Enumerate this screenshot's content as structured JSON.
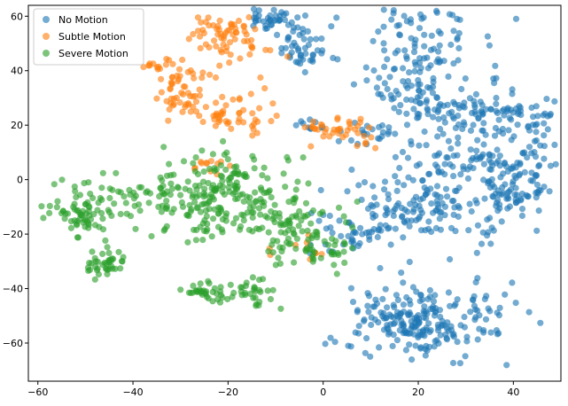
{
  "chart_data": {
    "type": "scatter",
    "title": "",
    "xlabel": "",
    "ylabel": "",
    "xlim": [
      -62,
      50
    ],
    "ylim": [
      -74,
      64
    ],
    "x_ticks": [
      -60,
      -40,
      -20,
      0,
      20,
      40
    ],
    "y_ticks": [
      -60,
      -40,
      -20,
      0,
      20,
      40,
      60
    ],
    "x_tick_labels": [
      "−60",
      "−40",
      "−20",
      "0",
      "20",
      "40"
    ],
    "y_tick_labels": [
      "−60",
      "−40",
      "−20",
      "0",
      "20",
      "40",
      "60"
    ],
    "grid": false,
    "legend_position": "top-left",
    "series": [
      {
        "name": "No Motion",
        "color": "#1f77b4",
        "clusters": [
          {
            "cx": -11,
            "cy": 59,
            "sx": 3,
            "sy": 2.5,
            "n": 40
          },
          {
            "cx": -5,
            "cy": 48,
            "sx": 3,
            "sy": 4,
            "n": 45
          },
          {
            "cx": 20,
            "cy": 50,
            "sx": 7,
            "sy": 7,
            "n": 90
          },
          {
            "cx": 16,
            "cy": 35,
            "sx": 4,
            "sy": 4,
            "n": 30
          },
          {
            "cx": 35,
            "cy": 24,
            "sx": 8,
            "sy": 5,
            "n": 110
          },
          {
            "cx": 23,
            "cy": 25,
            "sx": 4,
            "sy": 3,
            "n": 30
          },
          {
            "cx": 10,
            "cy": 17,
            "sx": 5,
            "sy": 3,
            "n": 25
          },
          {
            "cx": 35,
            "cy": 5,
            "sx": 10,
            "sy": 5,
            "n": 140
          },
          {
            "cx": 40,
            "cy": -6,
            "sx": 4,
            "sy": 3,
            "n": 40
          },
          {
            "cx": 20,
            "cy": -12,
            "sx": 10,
            "sy": 6,
            "n": 130
          },
          {
            "cx": 8,
            "cy": -20,
            "sx": 5,
            "sy": 3,
            "n": 35
          },
          {
            "cx": 20,
            "cy": -52,
            "sx": 8,
            "sy": 7,
            "n": 230
          },
          {
            "cx": -3,
            "cy": 20,
            "sx": 2,
            "sy": 2,
            "n": 10
          }
        ]
      },
      {
        "name": "Subtle Motion",
        "color": "#ff7f0e",
        "clusters": [
          {
            "cx": -20,
            "cy": 52,
            "sx": 4,
            "sy": 5,
            "n": 70
          },
          {
            "cx": -35,
            "cy": 43,
            "sx": 1.5,
            "sy": 1.5,
            "n": 10
          },
          {
            "cx": -29,
            "cy": 32,
            "sx": 3,
            "sy": 5,
            "n": 55
          },
          {
            "cx": -19,
            "cy": 23,
            "sx": 4,
            "sy": 4,
            "n": 45
          },
          {
            "cx": 4,
            "cy": 18,
            "sx": 4,
            "sy": 3,
            "n": 40
          },
          {
            "cx": -23,
            "cy": 5,
            "sx": 3,
            "sy": 2,
            "n": 12
          },
          {
            "cx": -5,
            "cy": -26,
            "sx": 4,
            "sy": 2,
            "n": 10
          }
        ]
      },
      {
        "name": "Severe Motion",
        "color": "#2ca02c",
        "clusters": [
          {
            "cx": -50,
            "cy": -12,
            "sx": 4,
            "sy": 5,
            "n": 70
          },
          {
            "cx": -46,
            "cy": -31,
            "sx": 2,
            "sy": 2.5,
            "n": 40
          },
          {
            "cx": -35,
            "cy": -6,
            "sx": 7,
            "sy": 5,
            "n": 70
          },
          {
            "cx": -20,
            "cy": -10,
            "sx": 8,
            "sy": 8,
            "n": 140
          },
          {
            "cx": -5,
            "cy": -18,
            "sx": 5,
            "sy": 6,
            "n": 90
          },
          {
            "cx": -25,
            "cy": -42,
            "sx": 2.5,
            "sy": 2,
            "n": 30
          },
          {
            "cx": -16,
            "cy": -42,
            "sx": 3,
            "sy": 3,
            "n": 35
          },
          {
            "cx": -20,
            "cy": 3,
            "sx": 5,
            "sy": 4,
            "n": 40
          },
          {
            "cx": 3,
            "cy": -26,
            "sx": 3,
            "sy": 3,
            "n": 15
          }
        ]
      }
    ]
  }
}
